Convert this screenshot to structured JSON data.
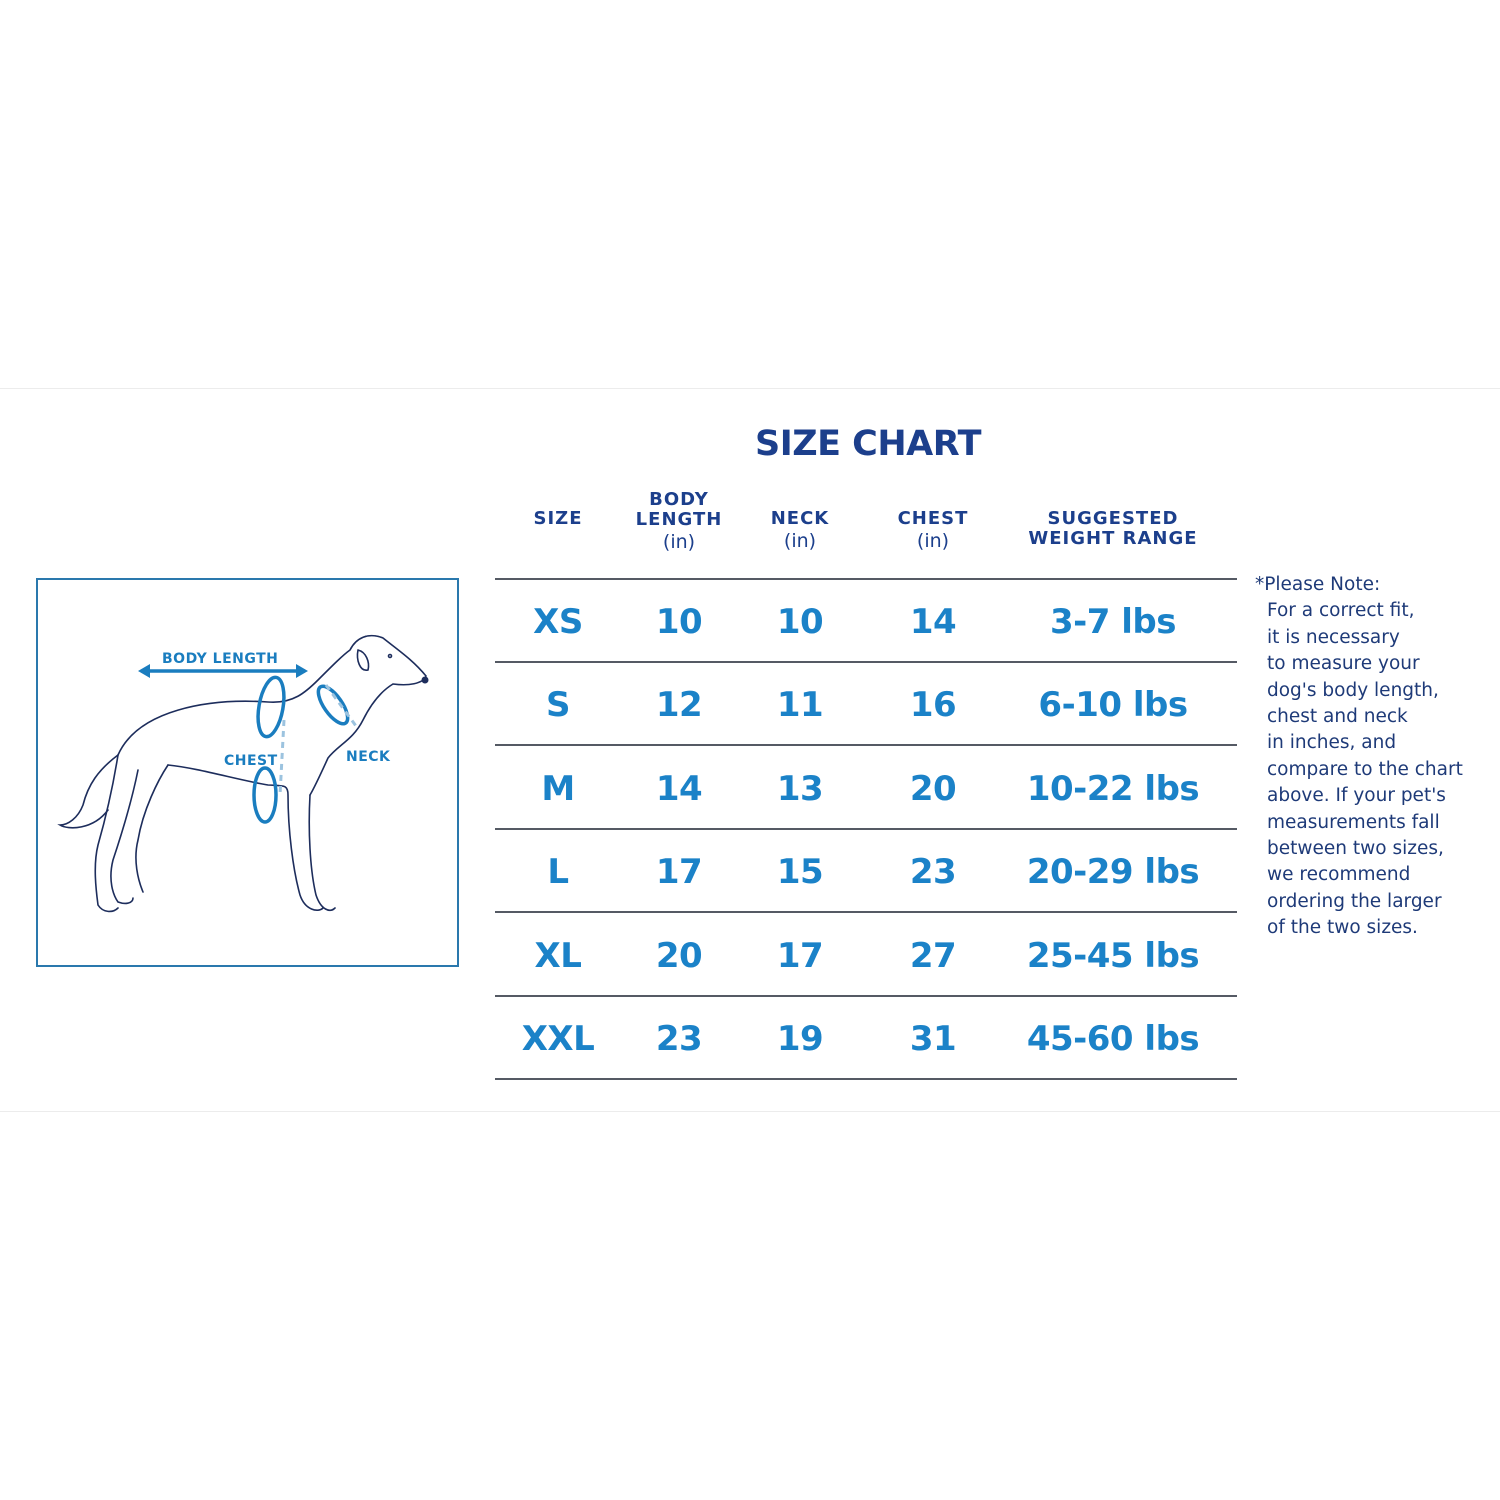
{
  "title": "SIZE CHART",
  "headers": [
    {
      "label": "SIZE",
      "unit": ""
    },
    {
      "label": "BODY LENGTH",
      "unit": "(in)"
    },
    {
      "label": "NECK",
      "unit": "(in)"
    },
    {
      "label": "CHEST",
      "unit": "(in)"
    },
    {
      "label": "SUGGESTED WEIGHT RANGE",
      "unit": ""
    }
  ],
  "rows": [
    [
      "XS",
      "10",
      "10",
      "14",
      "3-7 lbs"
    ],
    [
      "S",
      "12",
      "11",
      "16",
      "6-10 lbs"
    ],
    [
      "M",
      "14",
      "13",
      "20",
      "10-22 lbs"
    ],
    [
      "L",
      "17",
      "15",
      "23",
      "20-29 lbs"
    ],
    [
      "XL",
      "20",
      "17",
      "27",
      "25-45 lbs"
    ],
    [
      "XXL",
      "23",
      "19",
      "31",
      "45-60 lbs"
    ]
  ],
  "diagram": {
    "body_length": "BODY LENGTH",
    "chest": "CHEST",
    "neck": "NECK"
  },
  "note": [
    "*Please Note:",
    "For a correct fit,",
    "it is necessary",
    "to measure your",
    "dog's body length,",
    "chest and neck",
    "in inches, and",
    "compare to the chart",
    "above. If your pet's",
    "measurements fall",
    "between two sizes,",
    "we recommend",
    "ordering the larger",
    "of the two sizes."
  ],
  "colors": {
    "title": "#1c3f8c",
    "values": "#1b82c8",
    "note": "#1e3a78"
  }
}
